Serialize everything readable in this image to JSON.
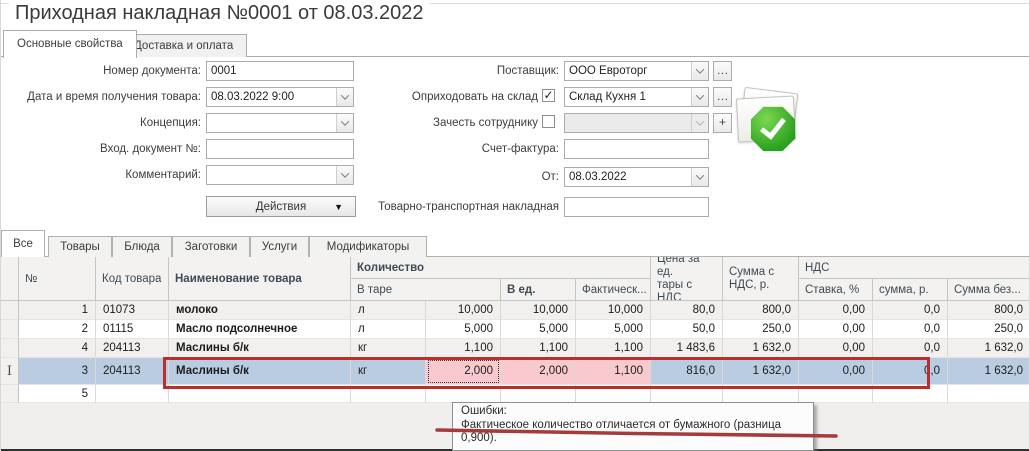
{
  "window": {
    "title": "Приходная накладная №0001 от 08.03.2022"
  },
  "tabs_top": [
    {
      "label": "Основные свойства",
      "active": true
    },
    {
      "label": "Доставка и оплата",
      "active": false
    }
  ],
  "form": {
    "doc_number": {
      "label": "Номер документа:",
      "value": "0001"
    },
    "receive_dt": {
      "label": "Дата и время получения товара:",
      "value": "08.03.2022 9:00"
    },
    "concept": {
      "label": "Концепция:",
      "value": ""
    },
    "incoming_doc": {
      "label": "Вход. документ №:",
      "value": ""
    },
    "comment": {
      "label": "Комментарий:",
      "value": ""
    },
    "actions": {
      "label": "Действия"
    },
    "supplier": {
      "label": "Поставщик:",
      "value": "ООО Евроторг"
    },
    "warehouse": {
      "label": "Оприходовать на склад",
      "value": "Склад Кухня 1",
      "checked": true,
      "check_glyph": "✓"
    },
    "employee": {
      "label": "Зачесть сотруднику",
      "value": "",
      "checked": false,
      "add_glyph": "+"
    },
    "invoice": {
      "label": "Счет-фактура:",
      "value": ""
    },
    "from_date": {
      "label": "От:",
      "value": "08.03.2022"
    },
    "ttn": {
      "label": "Товарно-транспортная накладная",
      "value": ""
    },
    "browse_glyph": "…"
  },
  "status_icon": {
    "name": "document-saved-check",
    "check_color": "#2aa01e"
  },
  "category_tabs": [
    {
      "label": "Все",
      "active": true
    },
    {
      "label": "Товары",
      "active": false
    },
    {
      "label": "Блюда",
      "active": false
    },
    {
      "label": "Заготовки",
      "active": false
    },
    {
      "label": "Услуги",
      "active": false
    },
    {
      "label": "Модификаторы",
      "active": false
    }
  ],
  "table": {
    "header": {
      "num": "№",
      "code": "Код товара",
      "name": "Наименование товара",
      "qty_group": "Количество",
      "tare": "В таре",
      "in_units": "В ед.",
      "actual": "Фактическ...",
      "price_l1": "Цена за ед.",
      "price_l2": "тары с НДС",
      "sum_vat_l1": "Сумма с",
      "sum_vat_l2": "НДС, р.",
      "vat_group": "НДС",
      "vat_rate": "Ставка, %",
      "vat_sum": "сумма, р.",
      "sum_no_vat": "Сумма без..."
    },
    "cursor_glyph": "I",
    "rows": [
      {
        "num": "1",
        "code": "01073",
        "name": "молоко",
        "unit": "л",
        "tare": "10,000",
        "units_qty": "10,000",
        "actual": "10,000",
        "price": "80,0",
        "sum_vat": "800,0",
        "vat_rate": "0,00",
        "vat_sum": "0,0",
        "sum_no_vat": "800,0",
        "selected": false,
        "shade": true
      },
      {
        "num": "2",
        "code": "01115",
        "name": "Масло подсолнечное",
        "unit": "л",
        "tare": "5,000",
        "units_qty": "5,000",
        "actual": "5,000",
        "price": "50,0",
        "sum_vat": "250,0",
        "vat_rate": "0,00",
        "vat_sum": "0,0",
        "sum_no_vat": "250,0",
        "selected": false,
        "shade": false
      },
      {
        "num": "4",
        "code": "204113",
        "name": "Маслины б/к",
        "unit": "кг",
        "tare": "1,100",
        "units_qty": "1,100",
        "actual": "1,100",
        "price": "1 483,6",
        "sum_vat": "1 632,0",
        "vat_rate": "0,00",
        "vat_sum": "0,0",
        "sum_no_vat": "1 632,0",
        "selected": false,
        "shade": true
      },
      {
        "num": "3",
        "code": "204113",
        "name": "Маслины б/к",
        "unit": "кг",
        "tare": "2,000",
        "units_qty": "2,000",
        "actual": "1,100",
        "price": "816,0",
        "sum_vat": "1 632,0",
        "vat_rate": "0,00",
        "vat_sum": "0,0",
        "sum_no_vat": "1 632,0",
        "selected": true,
        "shade": false,
        "error_cells": [
          "tare",
          "units_qty",
          "actual"
        ],
        "focus_cell": "tare"
      },
      {
        "num": "5",
        "code": "",
        "name": "",
        "unit": "",
        "tare": "",
        "units_qty": "",
        "actual": "",
        "price": "",
        "sum_vat": "",
        "vat_rate": "",
        "vat_sum": "",
        "sum_no_vat": "",
        "selected": false,
        "shade": false
      }
    ]
  },
  "tooltip": {
    "title": "Ошибки:",
    "text": "Фактическое количество отличается от бумажного (разница 0,900)."
  },
  "colors": {
    "selected_row": "#b9cce2",
    "error_cell": "#f8c9cf",
    "annotation_red": "#b6302d",
    "check_green": "#2aa01e"
  }
}
